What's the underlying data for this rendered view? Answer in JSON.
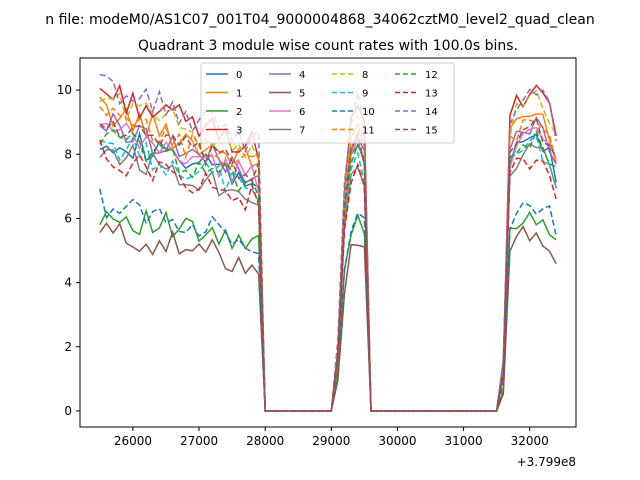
{
  "chart_data": {
    "type": "line",
    "suptitle": "n file: modeM0/AS1C07_001T04_9000004868_34062cztM0_level2_quad_clean",
    "title": "Quadrant 3 module wise count rates with 100.0s bins.",
    "xlabel": "",
    "ylabel": "",
    "offset_label": "+3.799e8",
    "xlim": [
      25200,
      32700
    ],
    "ylim": [
      -0.5,
      11
    ],
    "xticks": [
      26000,
      27000,
      28000,
      29000,
      30000,
      31000,
      32000
    ],
    "xtick_labels": [
      "26000",
      "27000",
      "28000",
      "29000",
      "30000",
      "31000",
      "32000"
    ],
    "yticks": [
      0,
      2,
      4,
      6,
      8,
      10
    ],
    "ytick_labels": [
      "0",
      "2",
      "4",
      "6",
      "8",
      "10"
    ],
    "legend_location": "top-center",
    "segments": [
      {
        "x_start": 25500,
        "x_end": 27900
      },
      {
        "x_start": 28000,
        "x_end": 29000
      },
      {
        "x_start": 29100,
        "x_end": 29500
      },
      {
        "x_start": 29600,
        "x_end": 31500
      },
      {
        "x_start": 31600,
        "x_end": 32400
      }
    ],
    "series": [
      {
        "name": "0",
        "color": "#1f77b4",
        "dash": false,
        "level": 8.6
      },
      {
        "name": "1",
        "color": "#ff7f0e",
        "dash": false,
        "level": 9.4
      },
      {
        "name": "2",
        "color": "#2ca02c",
        "dash": false,
        "level": 6.2
      },
      {
        "name": "3",
        "color": "#d62728",
        "dash": false,
        "level": 10.0
      },
      {
        "name": "4",
        "color": "#9467bd",
        "dash": false,
        "level": 9.0
      },
      {
        "name": "5",
        "color": "#8c564b",
        "dash": false,
        "level": 5.6
      },
      {
        "name": "6",
        "color": "#e377c2",
        "dash": false,
        "level": 8.8
      },
      {
        "name": "7",
        "color": "#7f7f7f",
        "dash": false,
        "level": 8.2
      },
      {
        "name": "8",
        "color": "#bcbd22",
        "dash": true,
        "level": 9.8
      },
      {
        "name": "9",
        "color": "#17becf",
        "dash": true,
        "level": 8.4
      },
      {
        "name": "10",
        "color": "#1f77b4",
        "dash": true,
        "level": 6.5
      },
      {
        "name": "11",
        "color": "#ff7f0e",
        "dash": true,
        "level": 9.2
      },
      {
        "name": "12",
        "color": "#2ca02c",
        "dash": true,
        "level": 8.6
      },
      {
        "name": "13",
        "color": "#d62728",
        "dash": true,
        "level": 8.0
      },
      {
        "name": "14",
        "color": "#9467bd",
        "dash": true,
        "level": 10.2
      },
      {
        "name": "15",
        "color": "#8c564b",
        "dash": true,
        "level": 9.0
      }
    ]
  }
}
